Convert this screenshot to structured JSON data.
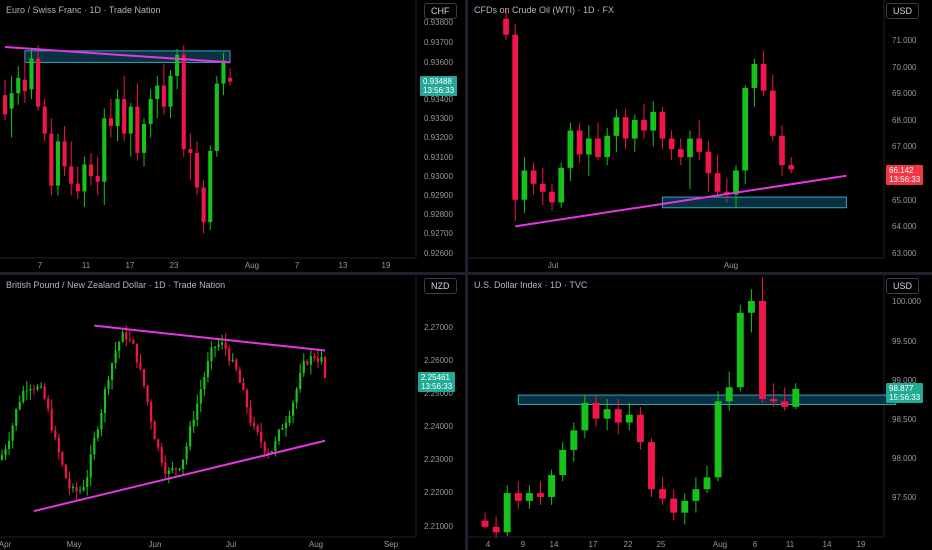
{
  "panels": [
    {
      "id": "eurchf",
      "title": "Euro / Swiss Franc · 1D · Trade Nation",
      "currency": "CHF",
      "price_label": "0.93488",
      "countdown": "13:56:33",
      "price_color": "#26a69a",
      "y_ticks": [
        "0.93800",
        "0.93700",
        "0.93600",
        "0.93500",
        "0.93400",
        "0.93300",
        "0.93200",
        "0.93100",
        "0.93000",
        "0.92900",
        "0.92800",
        "0.92700",
        "0.92600"
      ],
      "x_ticks": [
        "7",
        "11",
        "17",
        "23",
        "Aug",
        "7",
        "13",
        "19"
      ]
    },
    {
      "id": "wti",
      "title": "CFDs on Crude Oil (WTI) · 1D · FX",
      "currency": "USD",
      "price_label": "66.142",
      "countdown": "13:56:33",
      "price_color": "#f23645",
      "y_ticks": [
        "71.000",
        "70.000",
        "69.000",
        "68.000",
        "67.000",
        "66.000",
        "65.000",
        "64.000",
        "63.000"
      ],
      "x_ticks": [
        "Jul",
        "Aug"
      ]
    },
    {
      "id": "gbpnzd",
      "title": "British Pound / New Zealand Dollar · 1D · Trade Nation",
      "currency": "NZD",
      "price_label": "2.25461",
      "countdown": "13:56:33",
      "price_color": "#22ab94",
      "y_ticks": [
        "2.27000",
        "2.26000",
        "2.25000",
        "2.24000",
        "2.23000",
        "2.22000",
        "2.21000"
      ],
      "x_ticks": [
        "Apr",
        "May",
        "Jun",
        "Jul",
        "Aug",
        "Sep"
      ]
    },
    {
      "id": "dxy",
      "title": "U.S. Dollar Index · 1D · TVC",
      "currency": "USD",
      "price_label": "98.877",
      "countdown": "15:56:33",
      "price_color": "#22ab94",
      "y_ticks": [
        "100.000",
        "99.500",
        "99.000",
        "98.500",
        "98.000",
        "97.500"
      ],
      "x_ticks": [
        "4",
        "9",
        "14",
        "17",
        "22",
        "25",
        "Aug",
        "6",
        "11",
        "14",
        "19"
      ]
    }
  ],
  "colors": {
    "up": "#16c31a",
    "down": "#f2154a",
    "trendline": "#e535e5",
    "zone_border": "#2fa6c6",
    "zone_fill": "#0c3a4a"
  },
  "chart_data": [
    {
      "type": "candlestick",
      "title": "Euro / Swiss Franc · 1D · Trade Nation",
      "ylim": [
        0.9259,
        0.9387
      ],
      "ohlc": [
        [
          0.9342,
          0.935,
          0.9329,
          0.9332
        ],
        [
          0.9335,
          0.9352,
          0.932,
          0.9343
        ],
        [
          0.9343,
          0.9357,
          0.9337,
          0.9351
        ],
        [
          0.935,
          0.936,
          0.9338,
          0.9344
        ],
        [
          0.9345,
          0.9366,
          0.934,
          0.9361
        ],
        [
          0.9361,
          0.9368,
          0.9334,
          0.9336
        ],
        [
          0.9336,
          0.934,
          0.9318,
          0.9322
        ],
        [
          0.9322,
          0.933,
          0.929,
          0.9295
        ],
        [
          0.9295,
          0.9322,
          0.929,
          0.9318
        ],
        [
          0.9318,
          0.9326,
          0.93,
          0.9305
        ],
        [
          0.9305,
          0.9318,
          0.929,
          0.9296
        ],
        [
          0.9296,
          0.9305,
          0.9288,
          0.9292
        ],
        [
          0.9292,
          0.931,
          0.9284,
          0.9306
        ],
        [
          0.9306,
          0.9312,
          0.9295,
          0.93
        ],
        [
          0.93,
          0.931,
          0.929,
          0.9297
        ],
        [
          0.9297,
          0.9335,
          0.9285,
          0.933
        ],
        [
          0.933,
          0.934,
          0.932,
          0.9326
        ],
        [
          0.9326,
          0.9345,
          0.9318,
          0.934
        ],
        [
          0.934,
          0.9352,
          0.9318,
          0.9322
        ],
        [
          0.9322,
          0.9338,
          0.931,
          0.9336
        ],
        [
          0.9336,
          0.9348,
          0.9308,
          0.9312
        ],
        [
          0.9312,
          0.933,
          0.9305,
          0.9327
        ],
        [
          0.9327,
          0.9345,
          0.932,
          0.934
        ],
        [
          0.934,
          0.9352,
          0.933,
          0.9347
        ],
        [
          0.9347,
          0.9358,
          0.9332,
          0.9336
        ],
        [
          0.9336,
          0.9355,
          0.933,
          0.9352
        ],
        [
          0.9352,
          0.9366,
          0.9345,
          0.9363
        ],
        [
          0.9363,
          0.9368,
          0.931,
          0.9314
        ],
        [
          0.9314,
          0.9322,
          0.9298,
          0.9312
        ],
        [
          0.9312,
          0.9318,
          0.929,
          0.9294
        ],
        [
          0.9294,
          0.9298,
          0.927,
          0.9276
        ],
        [
          0.9276,
          0.9316,
          0.9272,
          0.9313
        ],
        [
          0.9313,
          0.9352,
          0.931,
          0.9348
        ],
        [
          0.9348,
          0.9364,
          0.9342,
          0.936
        ],
        [
          0.9351,
          0.9356,
          0.9347,
          0.9349
        ]
      ],
      "trendline": [
        [
          0,
          0.9367
        ],
        [
          34,
          0.9359
        ]
      ],
      "zone": [
        3,
        34,
        0.9359,
        0.9365
      ],
      "last_price": 0.93488
    },
    {
      "type": "candlestick",
      "title": "CFDs on Crude Oil (WTI) · 1D · FX",
      "ylim": [
        62.9,
        71.7
      ],
      "ohlc": [
        [
          71.8,
          72.2,
          71.0,
          71.2
        ],
        [
          71.2,
          71.6,
          64.2,
          65.0
        ],
        [
          65.0,
          66.6,
          64.5,
          66.1
        ],
        [
          66.1,
          66.4,
          65.2,
          65.6
        ],
        [
          65.6,
          66.2,
          64.8,
          65.3
        ],
        [
          65.3,
          65.6,
          64.6,
          64.9
        ],
        [
          64.9,
          66.4,
          64.7,
          66.2
        ],
        [
          66.2,
          67.9,
          65.7,
          67.6
        ],
        [
          67.6,
          67.9,
          66.4,
          66.7
        ],
        [
          66.7,
          67.8,
          65.9,
          67.3
        ],
        [
          67.3,
          67.9,
          66.5,
          66.6
        ],
        [
          66.6,
          67.7,
          66.3,
          67.4
        ],
        [
          67.4,
          68.4,
          66.8,
          68.1
        ],
        [
          68.1,
          68.4,
          66.9,
          67.3
        ],
        [
          67.3,
          68.2,
          66.8,
          68.0
        ],
        [
          68.0,
          68.6,
          67.3,
          67.6
        ],
        [
          67.6,
          68.7,
          67.0,
          68.3
        ],
        [
          68.3,
          68.5,
          66.9,
          67.3
        ],
        [
          67.3,
          67.6,
          66.5,
          66.9
        ],
        [
          66.9,
          67.3,
          66.3,
          66.6
        ],
        [
          66.6,
          67.6,
          65.4,
          67.3
        ],
        [
          67.3,
          68.0,
          66.5,
          66.8
        ],
        [
          66.8,
          67.2,
          65.3,
          66.0
        ],
        [
          66.0,
          66.7,
          65.1,
          65.3
        ],
        [
          65.3,
          65.8,
          64.9,
          65.2
        ],
        [
          65.2,
          66.3,
          64.7,
          66.1
        ],
        [
          66.1,
          69.3,
          65.6,
          69.2
        ],
        [
          69.2,
          70.3,
          68.5,
          70.1
        ],
        [
          70.1,
          70.6,
          68.9,
          69.1
        ],
        [
          69.1,
          69.7,
          67.2,
          67.4
        ],
        [
          67.4,
          67.8,
          65.9,
          66.3
        ],
        [
          66.3,
          66.6,
          66.0,
          66.14
        ]
      ],
      "trendline": [
        [
          1,
          64.0
        ],
        [
          37,
          65.9
        ]
      ],
      "zone": [
        17,
        37,
        64.7,
        65.1
      ],
      "last_price": 66.142
    },
    {
      "type": "candlestick",
      "title": "British Pound / New Zealand Dollar · 1D · Trade Nation",
      "ylim": [
        2.2085,
        2.276
      ],
      "candles": 92,
      "trendlines": [
        [
          [
            9,
            2.2145
          ],
          [
            91,
            2.2357
          ]
        ],
        [
          [
            26,
            2.2704
          ],
          [
            91,
            2.2629
          ]
        ]
      ],
      "last_price": 2.25461
    },
    {
      "type": "candlestick",
      "title": "U.S. Dollar Index · 1D · TVC",
      "ylim": [
        96.95,
        100.35
      ],
      "ohlc": [
        [
          97.2,
          97.3,
          97.1,
          97.12
        ],
        [
          97.12,
          97.25,
          96.98,
          97.05
        ],
        [
          97.05,
          97.65,
          97.0,
          97.55
        ],
        [
          97.55,
          97.7,
          97.35,
          97.45
        ],
        [
          97.45,
          97.65,
          97.35,
          97.55
        ],
        [
          97.55,
          97.7,
          97.4,
          97.5
        ],
        [
          97.5,
          97.85,
          97.4,
          97.78
        ],
        [
          97.78,
          98.2,
          97.7,
          98.1
        ],
        [
          98.1,
          98.45,
          97.95,
          98.35
        ],
        [
          98.35,
          98.8,
          98.25,
          98.7
        ],
        [
          98.7,
          98.8,
          98.4,
          98.5
        ],
        [
          98.5,
          98.75,
          98.35,
          98.62
        ],
        [
          98.62,
          98.75,
          98.3,
          98.45
        ],
        [
          98.45,
          98.7,
          98.35,
          98.55
        ],
        [
          98.55,
          98.65,
          98.1,
          98.2
        ],
        [
          98.2,
          98.25,
          97.5,
          97.6
        ],
        [
          97.6,
          97.75,
          97.4,
          97.48
        ],
        [
          97.48,
          97.6,
          97.2,
          97.3
        ],
        [
          97.3,
          97.55,
          97.15,
          97.45
        ],
        [
          97.45,
          97.75,
          97.3,
          97.6
        ],
        [
          97.6,
          97.9,
          97.55,
          97.75
        ],
        [
          97.75,
          98.85,
          97.7,
          98.72
        ],
        [
          98.72,
          99.1,
          98.6,
          98.9
        ],
        [
          98.9,
          99.95,
          98.85,
          99.85
        ],
        [
          99.85,
          100.15,
          99.6,
          100.0
        ],
        [
          100.0,
          100.3,
          98.7,
          98.75
        ],
        [
          98.75,
          98.95,
          98.65,
          98.72
        ],
        [
          98.72,
          98.9,
          98.6,
          98.65
        ],
        [
          98.65,
          98.95,
          98.62,
          98.88
        ]
      ],
      "zone": [
        3,
        37,
        98.68,
        98.8
      ],
      "last_price": 98.877
    }
  ]
}
